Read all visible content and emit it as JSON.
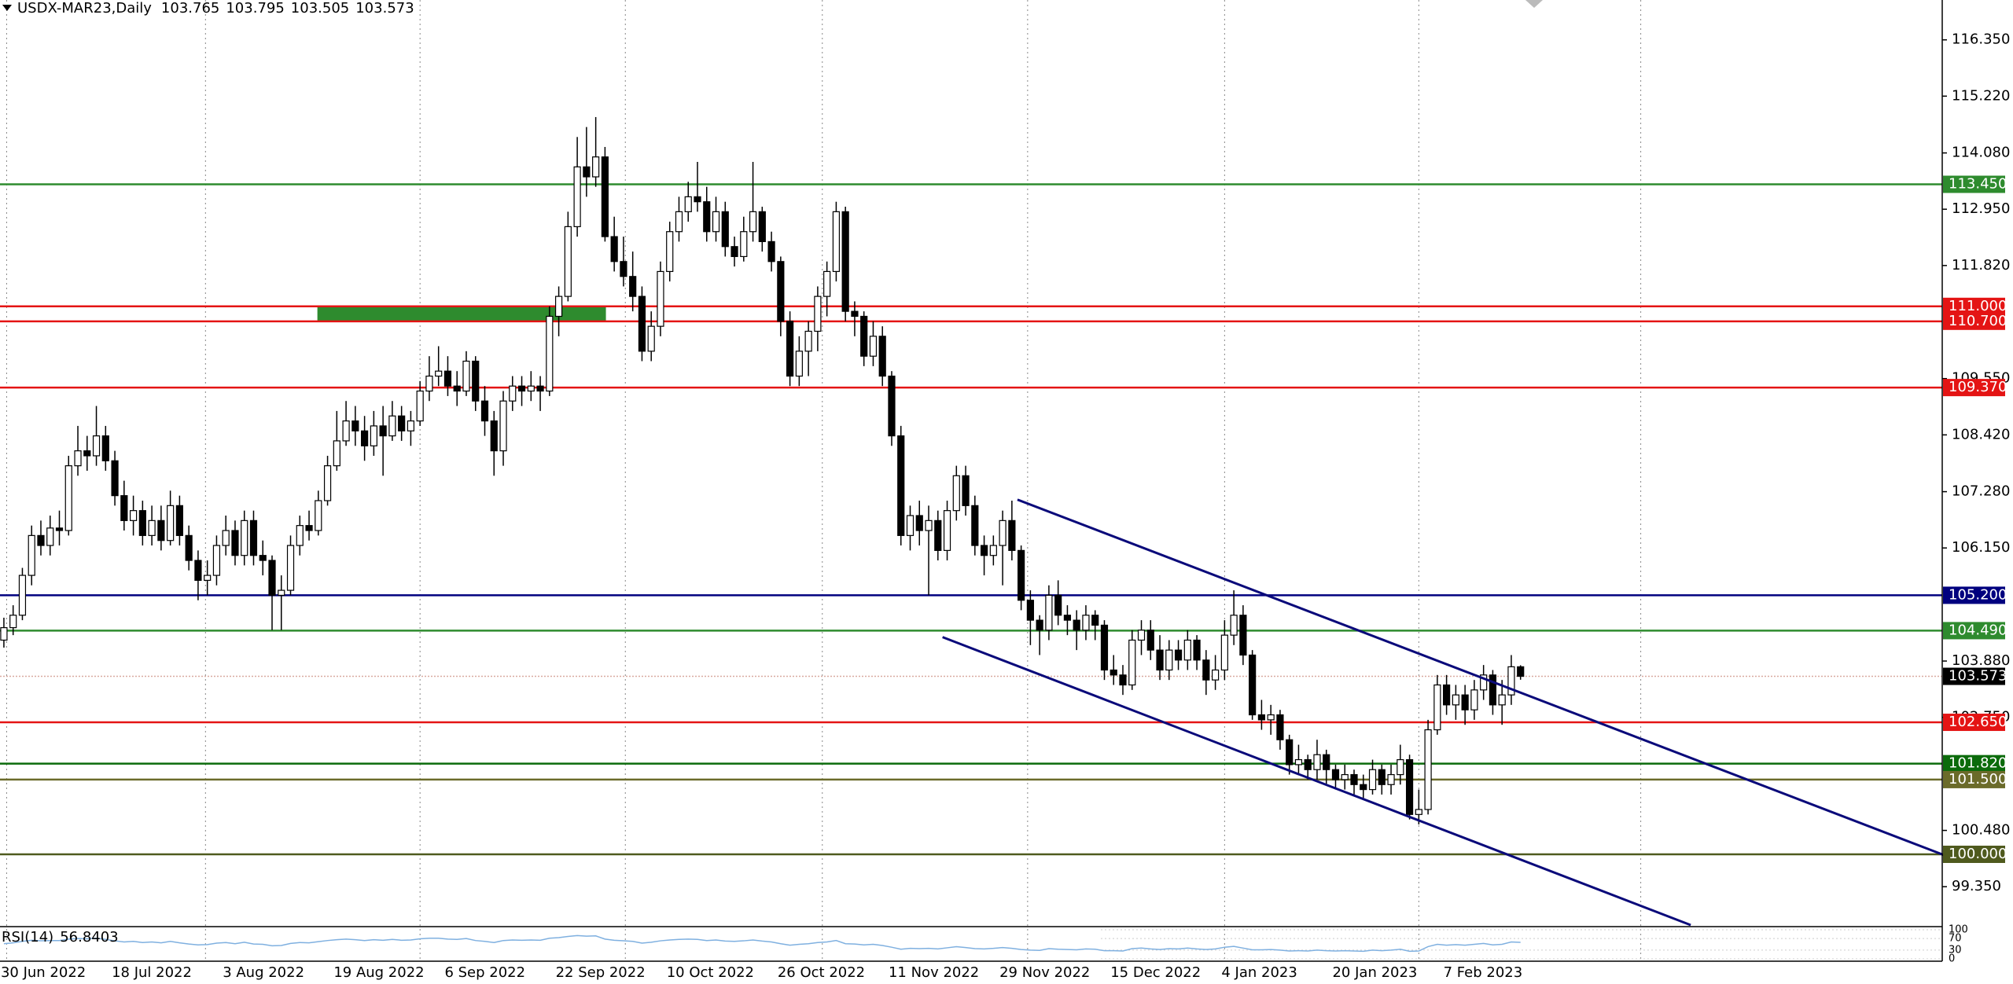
{
  "chart_data": {
    "type": "candlestick",
    "title": "USDX-MAR23,Daily",
    "xlim": [
      -0.42,
      209.6
    ],
    "ylim": [
      98.58,
      117.15
    ],
    "yticks": [
      {
        "value": 116.35,
        "label": "116.350"
      },
      {
        "value": 115.22,
        "label": "115.220"
      },
      {
        "value": 114.08,
        "label": "114.080"
      },
      {
        "value": 112.95,
        "label": "112.950"
      },
      {
        "value": 111.82,
        "label": "111.820"
      },
      {
        "value": 109.55,
        "label": "109.550"
      },
      {
        "value": 108.42,
        "label": "108.420"
      },
      {
        "value": 107.28,
        "label": "107.280"
      },
      {
        "value": 106.15,
        "label": "106.150"
      },
      {
        "value": 103.88,
        "label": "103.880"
      },
      {
        "value": 102.75,
        "label": "102.750"
      },
      {
        "value": 100.48,
        "label": "100.480"
      },
      {
        "value": 99.35,
        "label": "99.350"
      }
    ],
    "xgrid": [
      0.3,
      21.8,
      45,
      67.2,
      88.5,
      110.7,
      132,
      153,
      177
    ],
    "categories": [
      "30 Jun 2022",
      null,
      null,
      null,
      null,
      null,
      null,
      null,
      null,
      null,
      null,
      null,
      "18 Jul 2022",
      null,
      null,
      null,
      null,
      null,
      null,
      null,
      null,
      null,
      null,
      null,
      "3 Aug 2022",
      null,
      null,
      null,
      null,
      null,
      null,
      null,
      null,
      null,
      null,
      null,
      "19 Aug 2022",
      null,
      null,
      null,
      null,
      null,
      null,
      null,
      null,
      null,
      null,
      null,
      "6 Sep 2022",
      null,
      null,
      null,
      null,
      null,
      null,
      null,
      null,
      null,
      null,
      null,
      "22 Sep 2022",
      null,
      null,
      null,
      null,
      null,
      null,
      null,
      null,
      null,
      null,
      null,
      "10 Oct 2022",
      null,
      null,
      null,
      null,
      null,
      null,
      null,
      null,
      null,
      null,
      null,
      "26 Oct 2022",
      null,
      null,
      null,
      null,
      null,
      null,
      null,
      null,
      null,
      null,
      null,
      "11 Nov 2022",
      null,
      null,
      null,
      null,
      null,
      null,
      null,
      null,
      null,
      null,
      null,
      "29 Nov 2022",
      null,
      null,
      null,
      null,
      null,
      null,
      null,
      null,
      null,
      null,
      null,
      "15 Dec 2022",
      null,
      null,
      null,
      null,
      null,
      null,
      null,
      null,
      null,
      null,
      null,
      "4 Jan 2023",
      null,
      null,
      null,
      null,
      null,
      null,
      null,
      null,
      null,
      null,
      null,
      "20 Jan 2023",
      null,
      null,
      null,
      null,
      null,
      null,
      null,
      null,
      null,
      null,
      null,
      "7 Feb 2023",
      null,
      null,
      null,
      null,
      null,
      null,
      null,
      null
    ],
    "candles": [
      [
        104.3,
        104.75,
        104.15,
        104.55
      ],
      [
        104.55,
        105.0,
        104.4,
        104.8
      ],
      [
        104.8,
        105.75,
        104.7,
        105.6
      ],
      [
        105.6,
        106.6,
        105.4,
        106.4
      ],
      [
        106.4,
        106.7,
        106.0,
        106.2
      ],
      [
        106.2,
        106.8,
        106.0,
        106.55
      ],
      [
        106.55,
        106.9,
        106.2,
        106.5
      ],
      [
        106.5,
        108.0,
        106.4,
        107.8
      ],
      [
        107.8,
        108.6,
        107.6,
        108.1
      ],
      [
        108.1,
        108.4,
        107.7,
        108.0
      ],
      [
        108.0,
        109.0,
        107.8,
        108.4
      ],
      [
        108.4,
        108.6,
        107.7,
        107.9
      ],
      [
        107.9,
        108.1,
        107.0,
        107.2
      ],
      [
        107.2,
        107.5,
        106.5,
        106.7
      ],
      [
        106.7,
        107.2,
        106.4,
        106.9
      ],
      [
        106.9,
        107.1,
        106.2,
        106.4
      ],
      [
        106.4,
        107.0,
        106.2,
        106.7
      ],
      [
        106.7,
        107.0,
        106.1,
        106.3
      ],
      [
        106.3,
        107.3,
        106.2,
        107.0
      ],
      [
        107.0,
        107.2,
        106.2,
        106.4
      ],
      [
        106.4,
        106.6,
        105.7,
        105.9
      ],
      [
        105.9,
        106.1,
        105.1,
        105.5
      ],
      [
        105.5,
        105.9,
        105.2,
        105.6
      ],
      [
        105.6,
        106.4,
        105.4,
        106.2
      ],
      [
        106.2,
        106.8,
        106.0,
        106.5
      ],
      [
        106.5,
        106.7,
        105.8,
        106.0
      ],
      [
        106.0,
        106.9,
        105.8,
        106.7
      ],
      [
        106.7,
        106.9,
        105.8,
        106.0
      ],
      [
        106.0,
        106.3,
        105.6,
        105.9
      ],
      [
        105.9,
        106.0,
        104.5,
        105.2
      ],
      [
        105.2,
        105.6,
        104.5,
        105.3
      ],
      [
        105.3,
        106.4,
        105.2,
        106.2
      ],
      [
        106.2,
        106.8,
        106.0,
        106.6
      ],
      [
        106.6,
        106.9,
        106.3,
        106.5
      ],
      [
        106.5,
        107.3,
        106.4,
        107.1
      ],
      [
        107.1,
        108.0,
        107.0,
        107.8
      ],
      [
        107.8,
        108.9,
        107.7,
        108.3
      ],
      [
        108.3,
        109.1,
        108.2,
        108.7
      ],
      [
        108.7,
        109.0,
        108.2,
        108.5
      ],
      [
        108.5,
        108.8,
        107.9,
        108.2
      ],
      [
        108.2,
        108.9,
        108.0,
        108.6
      ],
      [
        108.6,
        109.0,
        107.6,
        108.4
      ],
      [
        108.4,
        109.1,
        108.3,
        108.8
      ],
      [
        108.8,
        109.0,
        108.3,
        108.5
      ],
      [
        108.5,
        108.9,
        108.2,
        108.7
      ],
      [
        108.7,
        109.5,
        108.6,
        109.3
      ],
      [
        109.3,
        110.0,
        109.1,
        109.6
      ],
      [
        109.6,
        110.2,
        109.4,
        109.7
      ],
      [
        109.7,
        110.0,
        109.2,
        109.4
      ],
      [
        109.4,
        109.7,
        109.0,
        109.3
      ],
      [
        109.3,
        110.1,
        109.2,
        109.9
      ],
      [
        109.9,
        110.0,
        108.9,
        109.1
      ],
      [
        109.1,
        109.4,
        108.4,
        108.7
      ],
      [
        108.7,
        108.9,
        107.6,
        108.1
      ],
      [
        108.1,
        109.3,
        107.8,
        109.1
      ],
      [
        109.1,
        109.6,
        108.9,
        109.4
      ],
      [
        109.4,
        109.6,
        109.0,
        109.3
      ],
      [
        109.3,
        109.7,
        109.1,
        109.4
      ],
      [
        109.4,
        109.6,
        108.9,
        109.3
      ],
      [
        109.3,
        111.0,
        109.2,
        110.8
      ],
      [
        110.8,
        111.4,
        110.4,
        111.2
      ],
      [
        111.2,
        112.9,
        111.1,
        112.6
      ],
      [
        112.6,
        114.4,
        112.4,
        113.8
      ],
      [
        113.8,
        114.6,
        113.2,
        113.6
      ],
      [
        113.6,
        114.8,
        113.4,
        114.0
      ],
      [
        114.0,
        114.2,
        112.3,
        112.4
      ],
      [
        112.4,
        112.8,
        111.7,
        111.9
      ],
      [
        111.9,
        112.4,
        111.4,
        111.6
      ],
      [
        111.6,
        112.1,
        110.9,
        111.2
      ],
      [
        111.2,
        111.4,
        109.9,
        110.1
      ],
      [
        110.1,
        110.9,
        109.9,
        110.6
      ],
      [
        110.6,
        111.9,
        110.4,
        111.7
      ],
      [
        111.7,
        112.7,
        111.5,
        112.5
      ],
      [
        112.5,
        113.2,
        112.3,
        112.9
      ],
      [
        112.9,
        113.5,
        112.7,
        113.2
      ],
      [
        113.2,
        113.9,
        112.9,
        113.1
      ],
      [
        113.1,
        113.4,
        112.3,
        112.5
      ],
      [
        112.5,
        113.2,
        112.3,
        112.9
      ],
      [
        112.9,
        113.1,
        112.0,
        112.2
      ],
      [
        112.2,
        112.4,
        111.8,
        112.0
      ],
      [
        112.0,
        112.8,
        111.9,
        112.5
      ],
      [
        112.5,
        113.9,
        112.3,
        112.9
      ],
      [
        112.9,
        113.0,
        112.1,
        112.3
      ],
      [
        112.3,
        112.5,
        111.7,
        111.9
      ],
      [
        111.9,
        112.0,
        110.4,
        110.7
      ],
      [
        110.7,
        110.9,
        109.4,
        109.6
      ],
      [
        109.6,
        110.4,
        109.4,
        110.1
      ],
      [
        110.1,
        110.7,
        109.6,
        110.5
      ],
      [
        110.5,
        111.4,
        110.1,
        111.2
      ],
      [
        111.2,
        111.9,
        110.8,
        111.7
      ],
      [
        111.7,
        113.1,
        111.5,
        112.9
      ],
      [
        112.9,
        113.0,
        110.7,
        110.9
      ],
      [
        110.9,
        111.1,
        110.4,
        110.8
      ],
      [
        110.8,
        110.9,
        109.8,
        110.0
      ],
      [
        110.0,
        110.7,
        109.8,
        110.4
      ],
      [
        110.4,
        110.6,
        109.4,
        109.6
      ],
      [
        109.6,
        109.7,
        108.2,
        108.4
      ],
      [
        108.4,
        108.6,
        106.2,
        106.4
      ],
      [
        106.4,
        107.0,
        106.1,
        106.8
      ],
      [
        106.8,
        107.1,
        106.2,
        106.5
      ],
      [
        106.5,
        107.0,
        105.2,
        106.7
      ],
      [
        106.7,
        106.9,
        105.9,
        106.1
      ],
      [
        106.1,
        107.1,
        105.9,
        106.9
      ],
      [
        106.9,
        107.8,
        106.7,
        107.6
      ],
      [
        107.6,
        107.8,
        106.8,
        107.0
      ],
      [
        107.0,
        107.2,
        106.0,
        106.2
      ],
      [
        106.2,
        106.4,
        105.6,
        106.0
      ],
      [
        106.0,
        106.4,
        105.8,
        106.2
      ],
      [
        106.2,
        106.9,
        105.4,
        106.7
      ],
      [
        106.7,
        107.1,
        105.9,
        106.1
      ],
      [
        106.1,
        106.2,
        104.9,
        105.1
      ],
      [
        105.1,
        105.3,
        104.2,
        104.7
      ],
      [
        104.7,
        104.8,
        104.0,
        104.5
      ],
      [
        104.5,
        105.4,
        104.3,
        105.2
      ],
      [
        105.2,
        105.5,
        104.6,
        104.8
      ],
      [
        104.8,
        105.0,
        104.4,
        104.7
      ],
      [
        104.7,
        104.9,
        104.1,
        104.5
      ],
      [
        104.5,
        105.0,
        104.3,
        104.8
      ],
      [
        104.8,
        104.9,
        104.3,
        104.6
      ],
      [
        104.6,
        104.7,
        103.5,
        103.7
      ],
      [
        103.7,
        104.0,
        103.4,
        103.6
      ],
      [
        103.6,
        103.8,
        103.2,
        103.4
      ],
      [
        103.4,
        104.5,
        103.3,
        104.3
      ],
      [
        104.3,
        104.7,
        104.0,
        104.5
      ],
      [
        104.5,
        104.7,
        103.9,
        104.1
      ],
      [
        104.1,
        104.4,
        103.5,
        103.7
      ],
      [
        103.7,
        104.3,
        103.5,
        104.1
      ],
      [
        104.1,
        104.3,
        103.7,
        103.9
      ],
      [
        103.9,
        104.5,
        103.7,
        104.3
      ],
      [
        104.3,
        104.4,
        103.7,
        103.9
      ],
      [
        103.9,
        104.1,
        103.2,
        103.5
      ],
      [
        103.5,
        104.0,
        103.3,
        103.7
      ],
      [
        103.7,
        104.7,
        103.5,
        104.4
      ],
      [
        104.4,
        105.3,
        104.2,
        104.8
      ],
      [
        104.8,
        105.0,
        103.8,
        104.0
      ],
      [
        104.0,
        104.1,
        102.7,
        102.8
      ],
      [
        102.8,
        103.1,
        102.5,
        102.7
      ],
      [
        102.7,
        103.0,
        102.4,
        102.8
      ],
      [
        102.8,
        102.9,
        102.1,
        102.3
      ],
      [
        102.3,
        102.4,
        101.6,
        101.8
      ],
      [
        101.8,
        102.2,
        101.6,
        101.9
      ],
      [
        101.9,
        102.0,
        101.5,
        101.7
      ],
      [
        101.7,
        102.3,
        101.5,
        102.0
      ],
      [
        102.0,
        102.1,
        101.4,
        101.7
      ],
      [
        101.7,
        101.8,
        101.3,
        101.5
      ],
      [
        101.5,
        101.8,
        101.3,
        101.6
      ],
      [
        101.6,
        101.7,
        101.2,
        101.4
      ],
      [
        101.4,
        101.6,
        101.1,
        101.3
      ],
      [
        101.3,
        101.9,
        101.2,
        101.7
      ],
      [
        101.7,
        101.8,
        101.2,
        101.4
      ],
      [
        101.4,
        101.8,
        101.2,
        101.6
      ],
      [
        101.6,
        102.2,
        101.4,
        101.9
      ],
      [
        101.9,
        102.0,
        100.7,
        100.8
      ],
      [
        100.8,
        101.3,
        100.6,
        100.9
      ],
      [
        100.9,
        102.7,
        100.8,
        102.5
      ],
      [
        102.5,
        103.6,
        102.4,
        103.4
      ],
      [
        103.4,
        103.6,
        102.8,
        103.0
      ],
      [
        103.0,
        103.4,
        102.7,
        103.2
      ],
      [
        103.2,
        103.4,
        102.6,
        102.9
      ],
      [
        102.9,
        103.5,
        102.7,
        103.3
      ],
      [
        103.3,
        103.8,
        103.1,
        103.6
      ],
      [
        103.6,
        103.7,
        102.8,
        103.0
      ],
      [
        103.0,
        103.5,
        102.6,
        103.2
      ],
      [
        103.2,
        104.0,
        103.0,
        103.765
      ],
      [
        103.765,
        103.795,
        103.505,
        103.573
      ]
    ],
    "levels": [
      {
        "value": 113.45,
        "label": "113.450",
        "color": "#2e8b2e"
      },
      {
        "value": 111.0,
        "label": "111.000",
        "color": "#e41414"
      },
      {
        "value": 110.7,
        "label": "110.700",
        "color": "#e41414"
      },
      {
        "value": 109.37,
        "label": "109.370",
        "color": "#e41414"
      },
      {
        "value": 105.2,
        "label": "105.200",
        "color": "#00007f"
      },
      {
        "value": 104.49,
        "label": "104.490",
        "color": "#2e8b2e"
      },
      {
        "value": 102.65,
        "label": "102.650",
        "color": "#e41414"
      },
      {
        "value": 101.82,
        "label": "101.820",
        "color": "#0b6b0b"
      },
      {
        "value": 101.5,
        "label": "101.500",
        "color": "#6b6b2a"
      },
      {
        "value": 100.0,
        "label": "100.000",
        "color": "#4f5a1e"
      }
    ],
    "zones": [
      {
        "x": [
          33.9,
          65.1
        ],
        "y": [
          110.7,
          111.0
        ],
        "color": "#2e8b2e"
      }
    ],
    "trendlines": [
      {
        "x": [
          109.6,
          210
        ],
        "y": [
          107.12,
          99.97
        ],
        "color": "#0a0a7a"
      },
      {
        "x": [
          101.5,
          182.4
        ],
        "y": [
          104.36,
          98.58
        ],
        "color": "#0a0a7a"
      }
    ],
    "rsi": {
      "name": "RSI(14)",
      "color": "#7fb0e0",
      "ylim": [
        0,
        100
      ],
      "yticks": [
        0,
        30,
        70,
        100
      ],
      "values": [
        52,
        55,
        60,
        64,
        62,
        63,
        63,
        68,
        70,
        69,
        71,
        67,
        62,
        58,
        60,
        56,
        58,
        55,
        60,
        55,
        51,
        48,
        49,
        54,
        56,
        52,
        57,
        51,
        50,
        45,
        46,
        53,
        56,
        55,
        59,
        63,
        66,
        68,
        66,
        63,
        66,
        64,
        67,
        64,
        65,
        69,
        71,
        71,
        68,
        67,
        70,
        63,
        60,
        56,
        63,
        65,
        64,
        65,
        64,
        71,
        73,
        77,
        80,
        78,
        79,
        68,
        64,
        62,
        60,
        54,
        57,
        62,
        65,
        67,
        68,
        67,
        63,
        65,
        61,
        60,
        62,
        65,
        61,
        58,
        52,
        47,
        50,
        52,
        56,
        58,
        63,
        52,
        51,
        48,
        50,
        46,
        40,
        33,
        36,
        35,
        36,
        34,
        38,
        42,
        39,
        35,
        34,
        36,
        39,
        36,
        32,
        30,
        29,
        35,
        33,
        32,
        31,
        34,
        33,
        28,
        28,
        27,
        35,
        37,
        34,
        32,
        35,
        34,
        37,
        34,
        32,
        34,
        40,
        43,
        37,
        31,
        31,
        32,
        30,
        27,
        28,
        27,
        30,
        28,
        27,
        28,
        27,
        26,
        30,
        28,
        30,
        33,
        26,
        27,
        42,
        50,
        47,
        49,
        47,
        50,
        53,
        48,
        50,
        58,
        56.8403
      ]
    }
  }
}
